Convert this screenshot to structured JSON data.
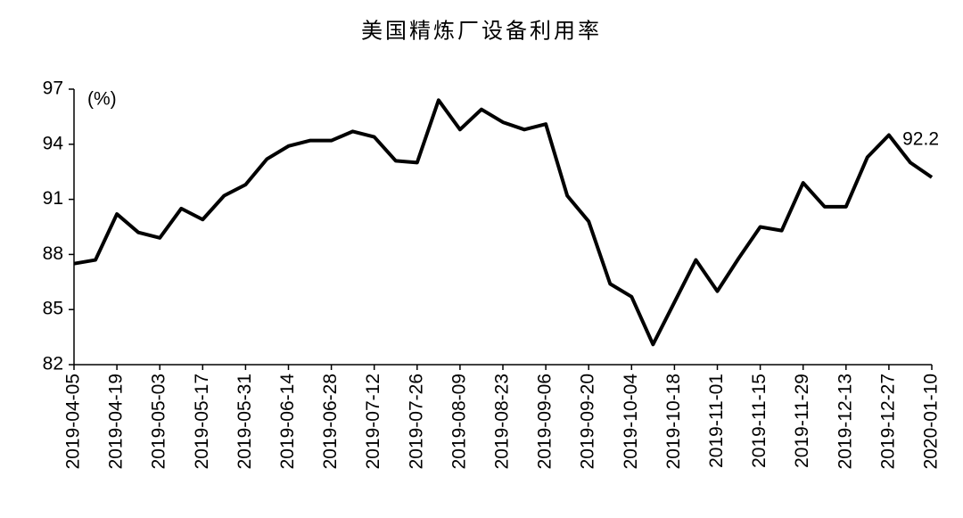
{
  "chart_data": {
    "type": "line",
    "title": "美国精炼厂设备利用率",
    "y_unit": "(%)",
    "categories": [
      "2019-04-05",
      null,
      "2019-04-19",
      null,
      "2019-05-03",
      null,
      "2019-05-17",
      null,
      "2019-05-31",
      null,
      "2019-06-14",
      null,
      "2019-06-28",
      null,
      "2019-07-12",
      null,
      "2019-07-26",
      null,
      "2019-08-09",
      null,
      "2019-08-23",
      null,
      "2019-09-06",
      null,
      "2019-09-20",
      null,
      "2019-10-04",
      null,
      "2019-10-18",
      null,
      "2019-11-01",
      null,
      "2019-11-15",
      null,
      "2019-11-29",
      null,
      "2019-12-13",
      null,
      "2019-12-27",
      null,
      "2020-01-10"
    ],
    "series": [
      {
        "color": "#000000",
        "values": [
          87.5,
          87.7,
          90.2,
          89.2,
          88.9,
          90.5,
          89.9,
          91.2,
          91.8,
          93.2,
          93.9,
          94.2,
          94.2,
          94.7,
          94.4,
          93.1,
          93.0,
          96.4,
          94.8,
          95.9,
          95.2,
          94.8,
          95.1,
          91.2,
          89.8,
          86.4,
          85.7,
          83.1,
          85.4,
          87.7,
          86.0,
          87.8,
          89.5,
          89.3,
          91.9,
          90.6,
          90.6,
          93.3,
          94.5,
          93.0,
          92.2
        ]
      }
    ],
    "labeled_points": [
      40
    ],
    "ylim": [
      82,
      97
    ],
    "yticks": [
      82,
      85,
      88,
      91,
      94,
      97
    ],
    "grid": false
  }
}
